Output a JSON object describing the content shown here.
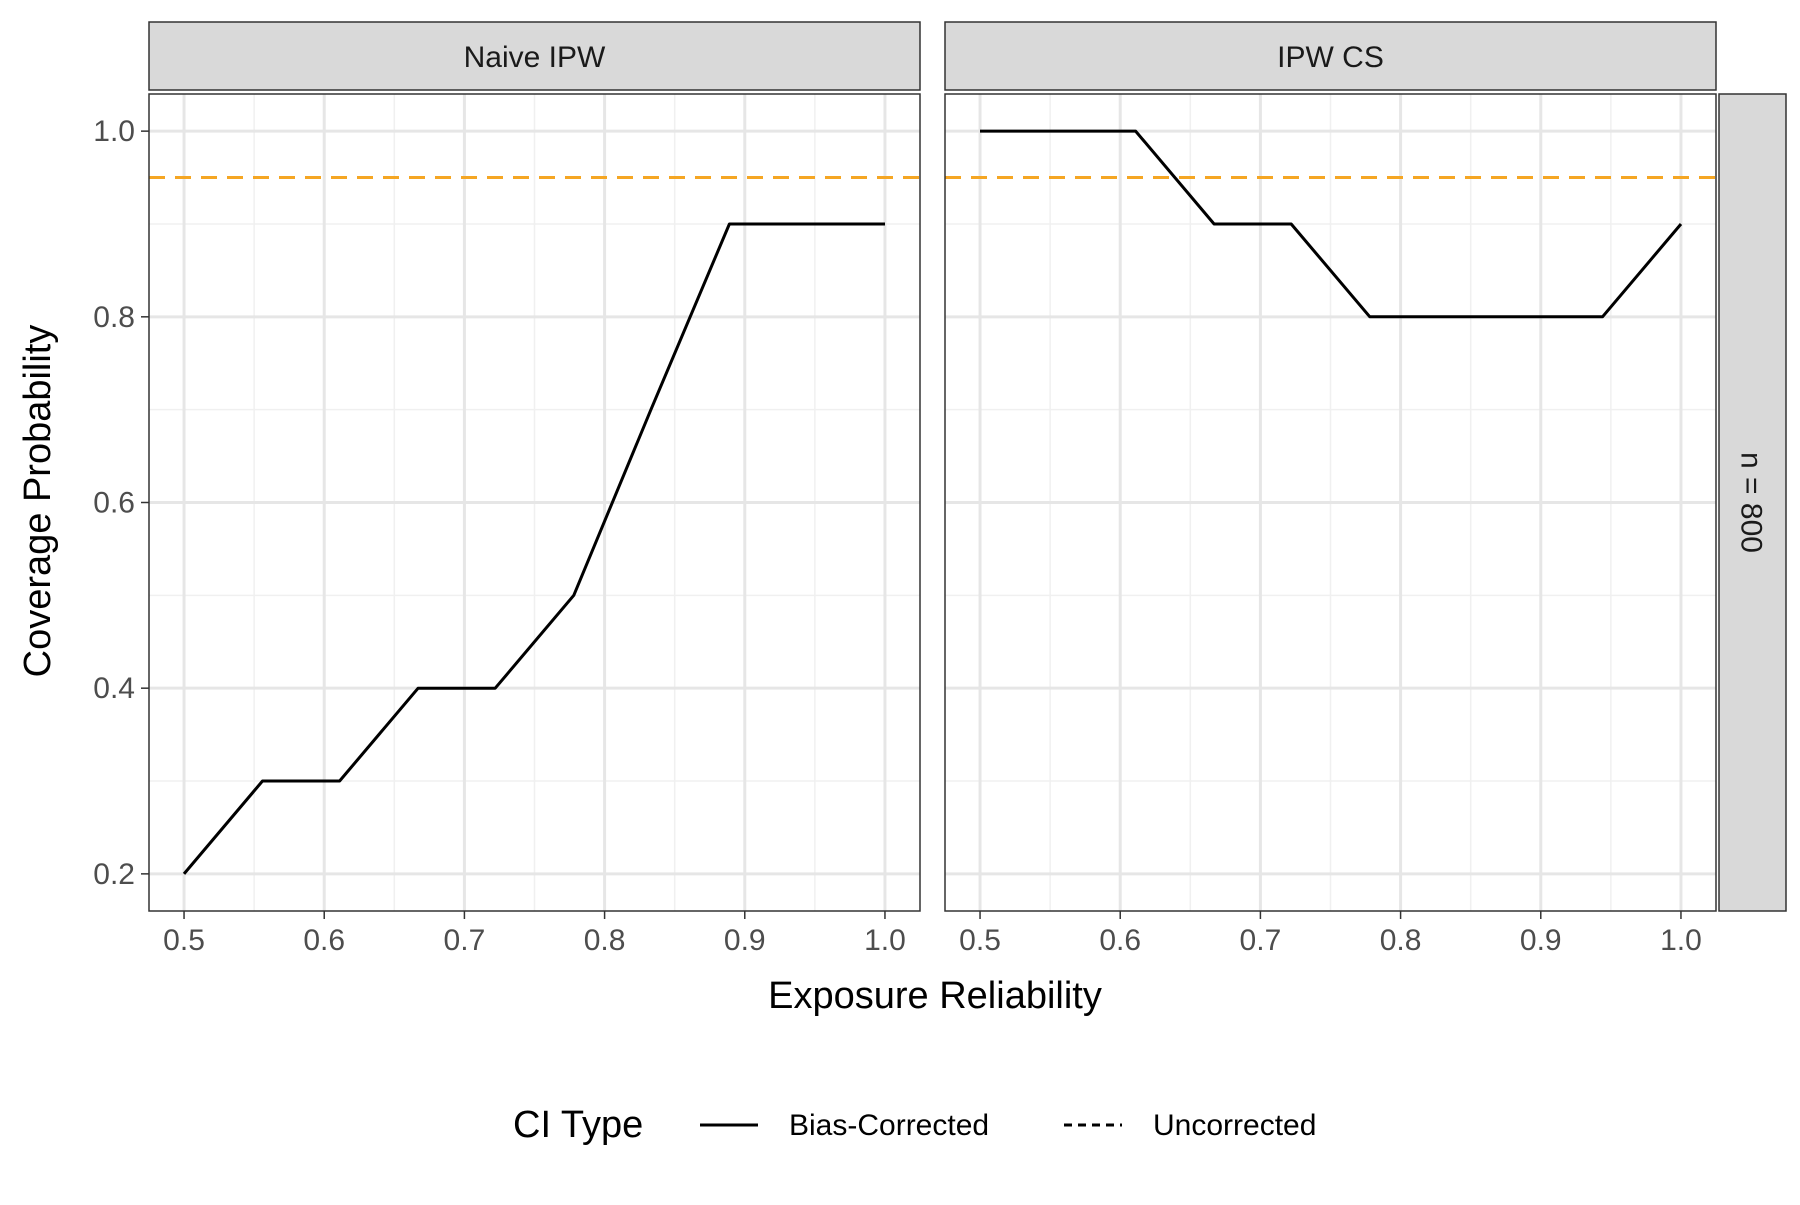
{
  "chart_data": {
    "type": "line",
    "xlabel": "Exposure Reliability",
    "ylabel": "Coverage Probability",
    "xlim": [
      0.475,
      1.025
    ],
    "ylim": [
      0.16,
      1.04
    ],
    "x_ticks": [
      0.5,
      0.6,
      0.7,
      0.8,
      0.9,
      1.0
    ],
    "x_tick_labels": [
      "0.5",
      "0.6",
      "0.7",
      "0.8",
      "0.9",
      "1.0"
    ],
    "y_ticks": [
      0.2,
      0.4,
      0.6,
      0.8,
      1.0
    ],
    "y_tick_labels": [
      "0.2",
      "0.4",
      "0.6",
      "0.8",
      "1.0"
    ],
    "grid": true,
    "reference_line": {
      "y": 0.95,
      "color": "#f5a623",
      "style": "dashed"
    },
    "row_strip_label": "n = 800",
    "legend": {
      "title": "CI Type",
      "position": "bottom",
      "entries": [
        {
          "label": "Bias-Corrected",
          "style": "solid"
        },
        {
          "label": "Uncorrected",
          "style": "dashed"
        }
      ]
    },
    "panels": [
      {
        "title": "Naive IPW",
        "series": [
          {
            "name": "Bias-Corrected",
            "x": [
              0.5,
              0.556,
              0.611,
              0.667,
              0.722,
              0.778,
              0.833,
              0.889,
              0.944,
              1.0
            ],
            "y": [
              0.2,
              0.3,
              0.3,
              0.4,
              0.4,
              0.5,
              0.7,
              0.9,
              0.9,
              0.9
            ]
          }
        ]
      },
      {
        "title": "IPW CS",
        "series": [
          {
            "name": "Bias-Corrected",
            "x": [
              0.5,
              0.556,
              0.611,
              0.667,
              0.722,
              0.778,
              0.833,
              0.889,
              0.944,
              1.0
            ],
            "y": [
              1.0,
              1.0,
              1.0,
              0.9,
              0.9,
              0.8,
              0.8,
              0.8,
              0.8,
              0.9
            ]
          }
        ]
      }
    ]
  }
}
